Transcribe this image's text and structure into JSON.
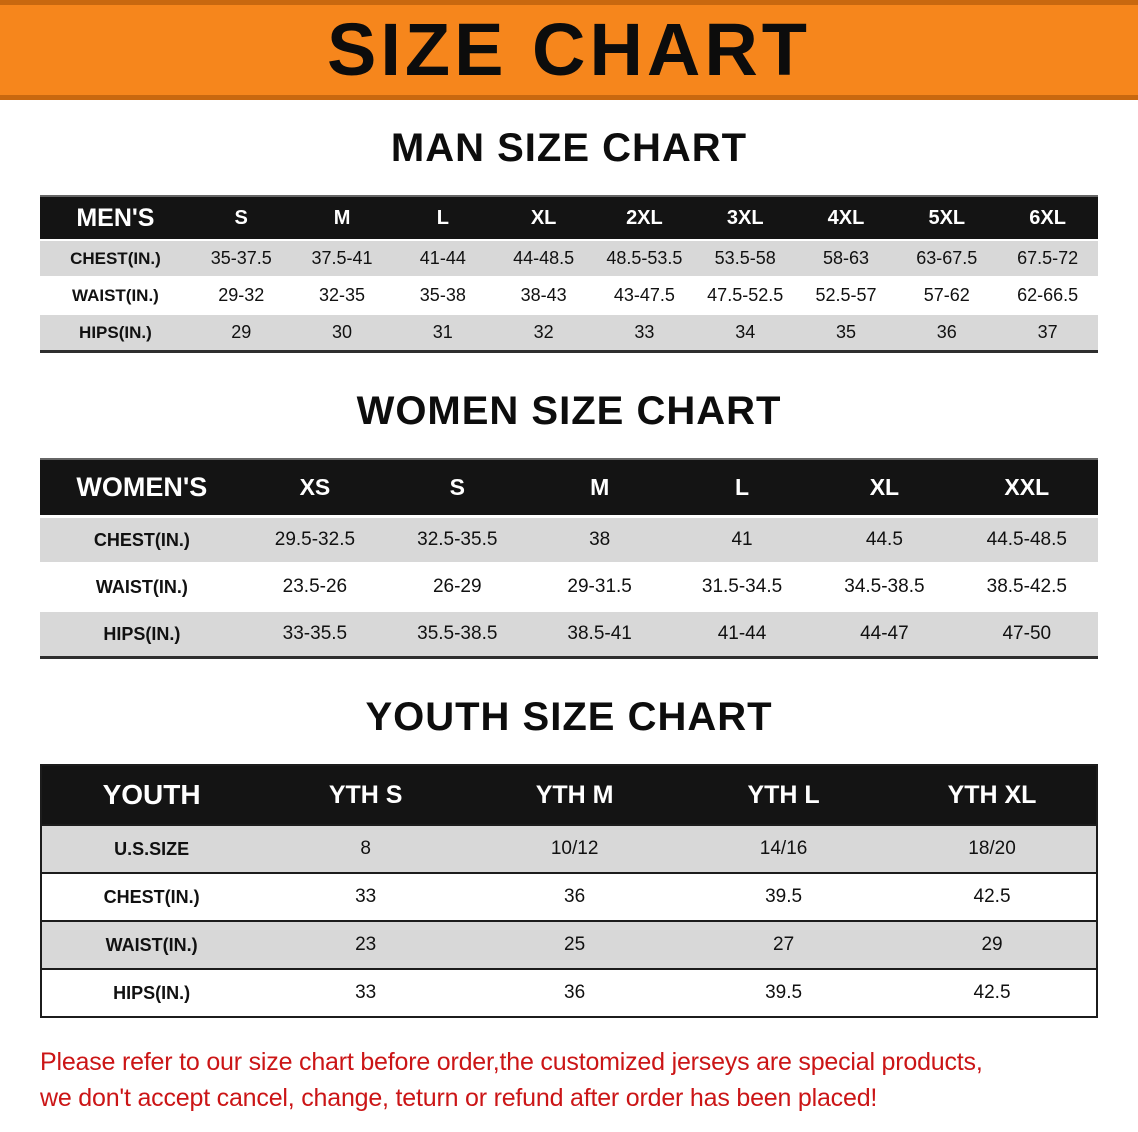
{
  "banner": {
    "title": "SIZE CHART"
  },
  "colors": {
    "banner_bg": "#f6861c",
    "banner_edge": "#c8680f",
    "header_bg": "#141414",
    "stripe": "#d8d8d8",
    "notice_color": "#cb1516"
  },
  "sections": [
    {
      "id": "men",
      "heading": "MAN SIZE CHART",
      "table": {
        "header": [
          "MEN'S",
          "S",
          "M",
          "L",
          "XL",
          "2XL",
          "3XL",
          "4XL",
          "5XL",
          "6XL"
        ],
        "rows": [
          [
            "CHEST(IN.)",
            "35-37.5",
            "37.5-41",
            "41-44",
            "44-48.5",
            "48.5-53.5",
            "53.5-58",
            "58-63",
            "63-67.5",
            "67.5-72"
          ],
          [
            "WAIST(IN.)",
            "29-32",
            "32-35",
            "35-38",
            "38-43",
            "43-47.5",
            "47.5-52.5",
            "52.5-57",
            "57-62",
            "62-66.5"
          ],
          [
            "HIPS(IN.)",
            "29",
            "30",
            "31",
            "32",
            "33",
            "34",
            "35",
            "36",
            "37"
          ]
        ]
      }
    },
    {
      "id": "women",
      "heading": "WOMEN SIZE CHART",
      "table": {
        "header": [
          "WOMEN'S",
          "XS",
          "S",
          "M",
          "L",
          "XL",
          "XXL"
        ],
        "rows": [
          [
            "CHEST(IN.)",
            "29.5-32.5",
            "32.5-35.5",
            "38",
            "41",
            "44.5",
            "44.5-48.5"
          ],
          [
            "WAIST(IN.)",
            "23.5-26",
            "26-29",
            "29-31.5",
            "31.5-34.5",
            "34.5-38.5",
            "38.5-42.5"
          ],
          [
            "HIPS(IN.)",
            "33-35.5",
            "35.5-38.5",
            "38.5-41",
            "41-44",
            "44-47",
            "47-50"
          ]
        ]
      }
    },
    {
      "id": "youth",
      "heading": "YOUTH SIZE CHART",
      "table": {
        "header": [
          "YOUTH",
          "YTH S",
          "YTH M",
          "YTH L",
          "YTH XL"
        ],
        "rows": [
          [
            "U.S.SIZE",
            "8",
            "10/12",
            "14/16",
            "18/20"
          ],
          [
            "CHEST(IN.)",
            "33",
            "36",
            "39.5",
            "42.5"
          ],
          [
            "WAIST(IN.)",
            "23",
            "25",
            "27",
            "29"
          ],
          [
            "HIPS(IN.)",
            "33",
            "36",
            "39.5",
            "42.5"
          ]
        ]
      }
    }
  ],
  "notice": {
    "line1": "Please refer to our size chart before order,the customized jerseys are special products,",
    "line2": "we don't accept cancel, change, teturn or refund after order has been placed!"
  }
}
